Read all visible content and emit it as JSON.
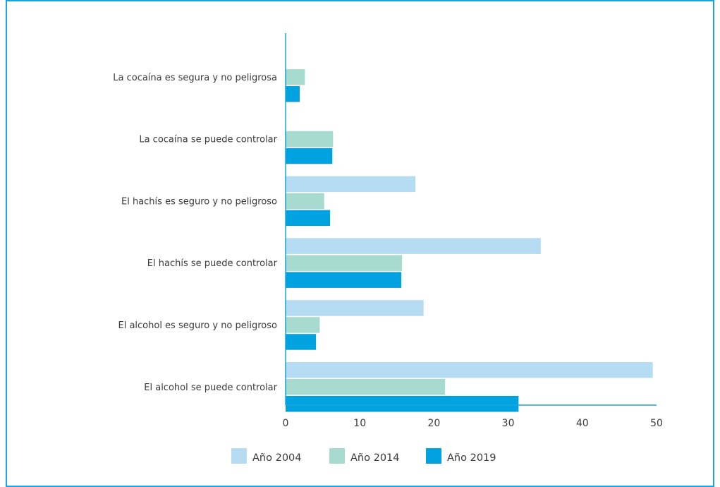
{
  "chart_data": {
    "type": "bar",
    "orientation": "horizontal",
    "categories": [
      "La cocaína es segura y no peligrosa",
      "La cocaína se puede controlar",
      "El hachís es seguro y no peligroso",
      "El hachís se puede controlar",
      "El alcohol es seguro y no peligroso",
      "El alcohol se puede controlar"
    ],
    "series": [
      {
        "name": "Año 2004",
        "color": "#b5dcf3",
        "values": [
          null,
          null,
          17.5,
          34.4,
          18.6,
          49.5
        ]
      },
      {
        "name": "Año 2014",
        "color": "#a8dbd0",
        "values": [
          2.6,
          6.4,
          5.2,
          15.7,
          4.6,
          21.5
        ]
      },
      {
        "name": "Año 2019",
        "color": "#00a3e0",
        "values": [
          1.9,
          6.3,
          6.0,
          15.6,
          4.1,
          31.4
        ]
      }
    ],
    "xlim": [
      0,
      50
    ],
    "xticks": [
      "0",
      "10",
      "20",
      "30",
      "40",
      "50"
    ],
    "legend_position": "bottom",
    "grid": false,
    "axis_color": "#1aa3dc"
  }
}
